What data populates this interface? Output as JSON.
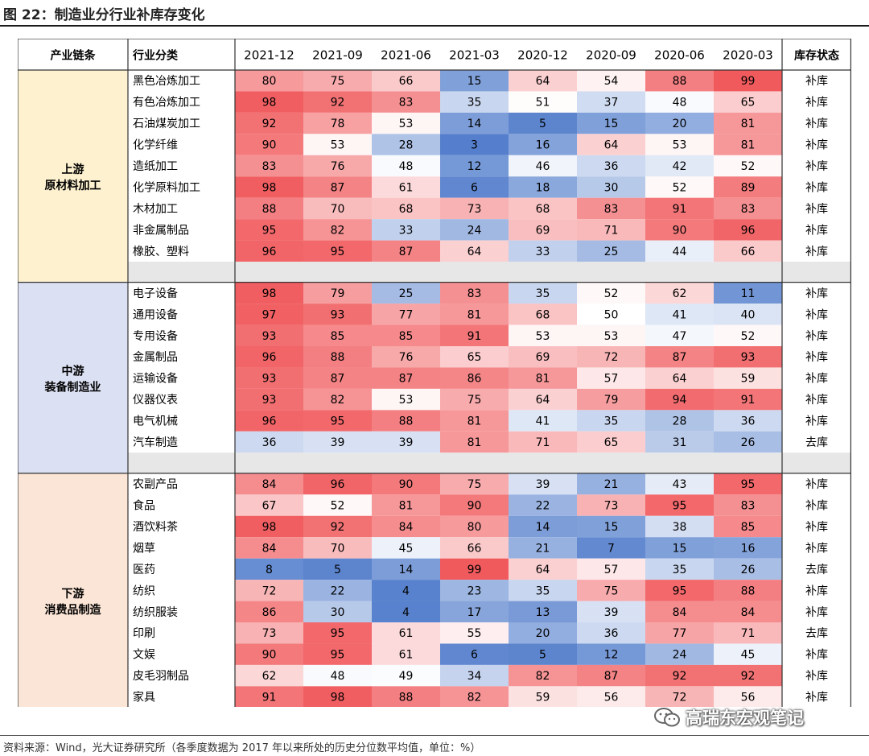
{
  "title": "图 22：制造业分行业补库存变化",
  "footnote": "资料来源：Wind，光大证券研究所（各季度数据为 2017 年以来所处的历史分位数平均值，单位：%）",
  "watermark": "高瑞东宏观笔记",
  "colors": {
    "low": "#4a77c9",
    "mid": "#ffffff",
    "high": "#f0575a",
    "upstream_bg": "#fdf1cf",
    "midstream_bg": "#dbe0f2",
    "downstream_bg": "#fbe5d6",
    "separator_bg": "#e7e7e7",
    "grid": "#333333"
  },
  "chart_data": {
    "type": "heatmap",
    "title": "图 22：制造业分行业补库存变化",
    "value_range": [
      0,
      100
    ],
    "header": {
      "chain": "产业链条",
      "industry": "行业分类",
      "status": "库存状态"
    },
    "columns": [
      "2021-12",
      "2021-09",
      "2021-06",
      "2021-03",
      "2020-12",
      "2020-09",
      "2020-06",
      "2020-03"
    ],
    "groups": [
      {
        "label_lines": [
          "上游",
          "原材料加工"
        ],
        "bg": "upstream_bg",
        "rows": [
          {
            "name": "黑色冶炼加工",
            "values": [
              80,
              75,
              66,
              15,
              64,
              54,
              88,
              99
            ],
            "status": "补库"
          },
          {
            "name": "有色冶炼加工",
            "values": [
              98,
              92,
              83,
              35,
              51,
              37,
              48,
              65
            ],
            "status": "补库"
          },
          {
            "name": "石油煤炭加工",
            "values": [
              92,
              78,
              53,
              14,
              5,
              15,
              20,
              81
            ],
            "status": "补库"
          },
          {
            "name": "化学纤维",
            "values": [
              90,
              53,
              28,
              3,
              16,
              64,
              53,
              81
            ],
            "status": "补库"
          },
          {
            "name": "造纸加工",
            "values": [
              83,
              76,
              48,
              12,
              46,
              36,
              42,
              52
            ],
            "status": "补库"
          },
          {
            "name": "化学原料加工",
            "values": [
              98,
              87,
              61,
              6,
              18,
              30,
              52,
              89
            ],
            "status": "补库"
          },
          {
            "name": "木材加工",
            "values": [
              88,
              70,
              68,
              73,
              68,
              83,
              91,
              83
            ],
            "status": "补库"
          },
          {
            "name": "非金属制品",
            "values": [
              95,
              82,
              33,
              24,
              69,
              71,
              90,
              96
            ],
            "status": "补库"
          },
          {
            "name": "橡胶、塑料",
            "values": [
              96,
              95,
              87,
              64,
              33,
              25,
              44,
              66
            ],
            "status": "补库"
          }
        ]
      },
      {
        "label_lines": [
          "中游",
          "装备制造业"
        ],
        "bg": "midstream_bg",
        "rows": [
          {
            "name": "电子设备",
            "values": [
              98,
              79,
              25,
              83,
              35,
              52,
              62,
              11
            ],
            "status": "补库"
          },
          {
            "name": "通用设备",
            "values": [
              97,
              93,
              77,
              81,
              68,
              50,
              41,
              40
            ],
            "status": "补库"
          },
          {
            "name": "专用设备",
            "values": [
              93,
              85,
              85,
              91,
              53,
              53,
              47,
              52
            ],
            "status": "补库"
          },
          {
            "name": "金属制品",
            "values": [
              96,
              88,
              76,
              65,
              69,
              72,
              87,
              93
            ],
            "status": "补库"
          },
          {
            "name": "运输设备",
            "values": [
              93,
              87,
              87,
              86,
              81,
              57,
              64,
              59
            ],
            "status": "补库"
          },
          {
            "name": "仪器仪表",
            "values": [
              93,
              82,
              53,
              75,
              64,
              79,
              94,
              91
            ],
            "status": "补库"
          },
          {
            "name": "电气机械",
            "values": [
              96,
              95,
              88,
              81,
              41,
              35,
              28,
              36
            ],
            "status": "补库"
          },
          {
            "name": "汽车制造",
            "values": [
              36,
              39,
              39,
              81,
              71,
              65,
              31,
              26
            ],
            "status": "去库"
          }
        ]
      },
      {
        "label_lines": [
          "下游",
          "消费品制造"
        ],
        "bg": "downstream_bg",
        "rows": [
          {
            "name": "农副产品",
            "values": [
              84,
              96,
              90,
              75,
              39,
              21,
              43,
              95
            ],
            "status": "补库"
          },
          {
            "name": "食品",
            "values": [
              67,
              52,
              81,
              90,
              22,
              73,
              95,
              83
            ],
            "status": "补库"
          },
          {
            "name": "酒饮料茶",
            "values": [
              98,
              92,
              84,
              80,
              14,
              15,
              38,
              85
            ],
            "status": "补库"
          },
          {
            "name": "烟草",
            "values": [
              84,
              70,
              45,
              66,
              21,
              7,
              15,
              16
            ],
            "status": "补库"
          },
          {
            "name": "医药",
            "values": [
              8,
              5,
              14,
              99,
              64,
              57,
              35,
              26
            ],
            "status": "去库"
          },
          {
            "name": "纺织",
            "values": [
              72,
              22,
              4,
              23,
              35,
              75,
              95,
              88
            ],
            "status": "补库"
          },
          {
            "name": "纺织服装",
            "values": [
              86,
              30,
              4,
              17,
              13,
              39,
              84,
              84
            ],
            "status": "补库"
          },
          {
            "name": "印刷",
            "values": [
              73,
              95,
              61,
              55,
              20,
              36,
              77,
              71
            ],
            "status": "去库"
          },
          {
            "name": "文娱",
            "values": [
              90,
              95,
              61,
              6,
              5,
              12,
              24,
              45
            ],
            "status": "补库"
          },
          {
            "name": "皮毛羽制品",
            "values": [
              62,
              48,
              49,
              34,
              82,
              87,
              92,
              92
            ],
            "status": "补库"
          },
          {
            "name": "家具",
            "values": [
              91,
              98,
              88,
              82,
              59,
              56,
              72,
              56
            ],
            "status": "补库"
          }
        ]
      }
    ]
  }
}
